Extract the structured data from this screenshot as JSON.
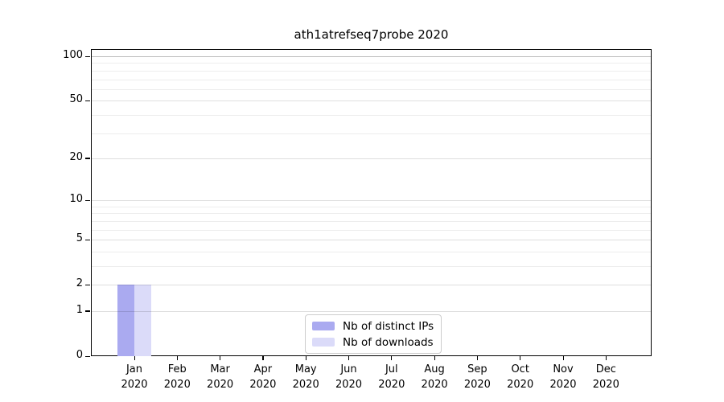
{
  "title": "ath1atrefseq7probe 2020",
  "chart_data": {
    "type": "bar",
    "title": "ath1atrefseq7probe 2020",
    "categories": [
      "Jan 2020",
      "Feb 2020",
      "Mar 2020",
      "Apr 2020",
      "May 2020",
      "Jun 2020",
      "Jul 2020",
      "Aug 2020",
      "Sep 2020",
      "Oct 2020",
      "Nov 2020",
      "Dec 2020"
    ],
    "x_tick_line1": [
      "Jan",
      "Feb",
      "Mar",
      "Apr",
      "May",
      "Jun",
      "Jul",
      "Aug",
      "Sep",
      "Oct",
      "Nov",
      "Dec"
    ],
    "x_tick_line2": [
      "2020",
      "2020",
      "2020",
      "2020",
      "2020",
      "2020",
      "2020",
      "2020",
      "2020",
      "2020",
      "2020",
      "2020"
    ],
    "series": [
      {
        "name": "Nb of distinct IPs",
        "color": "#aaaaf0",
        "values": [
          2,
          0,
          0,
          0,
          0,
          0,
          0,
          0,
          0,
          0,
          0,
          0
        ]
      },
      {
        "name": "Nb of downloads",
        "color": "#dbdbf9",
        "values": [
          2,
          0,
          0,
          0,
          0,
          0,
          0,
          0,
          0,
          0,
          0,
          0
        ]
      }
    ],
    "xlabel": "",
    "ylabel": "",
    "y_scale": "log10(1+y)",
    "y_major_ticks": [
      0,
      1,
      2,
      5,
      10,
      20,
      50,
      100
    ],
    "y_minor_gridlines": [
      3,
      4,
      6,
      7,
      8,
      9,
      30,
      40,
      60,
      70,
      80,
      90
    ],
    "ylim": [
      0,
      112
    ],
    "grid": true,
    "legend_position": "lower center",
    "legend": [
      "Nb of distinct IPs",
      "Nb of downloads"
    ]
  },
  "colors": {
    "background": "#ffffff",
    "spine": "#000000",
    "grid_minor": "#ececec",
    "grid_major": "#dedede",
    "grid_top": "#bfbfbf",
    "bar_distinct_ips": "#aaaaf0",
    "bar_downloads": "#dbdbf9",
    "legend_border": "#cccccc"
  }
}
